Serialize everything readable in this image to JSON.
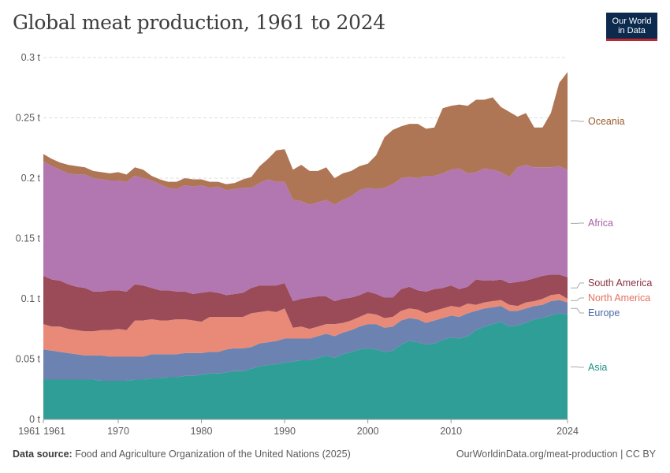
{
  "header": {
    "title": "Global meat production, 1961 to 2024",
    "logo_line1": "Our World",
    "logo_line2": "in Data"
  },
  "footer": {
    "source_label": "Data source:",
    "source_text": "Food and Agriculture Organization of the United Nations (2025)",
    "url_text": "OurWorldinData.org/meat-production | CC BY"
  },
  "colors": {
    "Asia": "#2f9e96",
    "Europe": "#6c82b0",
    "North America": "#e88a77",
    "South America": "#9b4b57",
    "Africa": "#b276b1",
    "Oceania": "#ae7655",
    "Asia_label": "#1e8f87",
    "Europe_label": "#4d6aa2",
    "North America_label": "#e2725c",
    "South America_label": "#8a3140",
    "Africa_label": "#a860a8",
    "Oceania_label": "#9a5a2e"
  },
  "chart_data": {
    "type": "area",
    "stacked": true,
    "title": "Global meat production, 1961 to 2024",
    "xlabel": "",
    "ylabel": "",
    "xlim": [
      1961,
      2024
    ],
    "ylim": [
      0,
      0.3
    ],
    "y_ticks": [
      0,
      0.05,
      0.1,
      0.15,
      0.2,
      0.25,
      0.3
    ],
    "y_tick_labels": [
      "0 t",
      "0.05 t",
      "0.1 t",
      "0.15 t",
      "0.2 t",
      "0.25 t",
      "0.3 t"
    ],
    "x_ticks": [
      1961,
      1970,
      1980,
      1990,
      2000,
      2010,
      2024
    ],
    "x_tick_labels": [
      "1961",
      "1970",
      "1980",
      "1990",
      "2000",
      "2010",
      "2024"
    ],
    "x_start_label": "1961",
    "grid": true,
    "legend": "right",
    "x": [
      1961,
      1962,
      1963,
      1964,
      1965,
      1966,
      1967,
      1968,
      1969,
      1970,
      1971,
      1972,
      1973,
      1974,
      1975,
      1976,
      1977,
      1978,
      1979,
      1980,
      1981,
      1982,
      1983,
      1984,
      1985,
      1986,
      1987,
      1988,
      1989,
      1990,
      1991,
      1992,
      1993,
      1994,
      1995,
      1996,
      1997,
      1998,
      1999,
      2000,
      2001,
      2002,
      2003,
      2004,
      2005,
      2006,
      2007,
      2008,
      2009,
      2010,
      2011,
      2012,
      2013,
      2014,
      2015,
      2016,
      2017,
      2018,
      2019,
      2020,
      2021,
      2022,
      2023,
      2024
    ],
    "series": [
      {
        "name": "Asia",
        "values": [
          0.033,
          0.033,
          0.033,
          0.033,
          0.033,
          0.033,
          0.033,
          0.032,
          0.032,
          0.032,
          0.032,
          0.033,
          0.033,
          0.034,
          0.034,
          0.035,
          0.035,
          0.036,
          0.036,
          0.037,
          0.038,
          0.038,
          0.039,
          0.04,
          0.04,
          0.042,
          0.044,
          0.045,
          0.046,
          0.047,
          0.048,
          0.049,
          0.049,
          0.051,
          0.053,
          0.051,
          0.054,
          0.056,
          0.058,
          0.059,
          0.058,
          0.056,
          0.057,
          0.062,
          0.065,
          0.064,
          0.062,
          0.063,
          0.066,
          0.068,
          0.067,
          0.069,
          0.074,
          0.077,
          0.079,
          0.081,
          0.077,
          0.078,
          0.08,
          0.083,
          0.084,
          0.086,
          0.088,
          0.087
        ]
      },
      {
        "name": "Europe",
        "values": [
          0.025,
          0.024,
          0.023,
          0.022,
          0.021,
          0.02,
          0.02,
          0.021,
          0.02,
          0.02,
          0.02,
          0.019,
          0.019,
          0.02,
          0.02,
          0.019,
          0.019,
          0.019,
          0.019,
          0.018,
          0.018,
          0.018,
          0.019,
          0.019,
          0.019,
          0.018,
          0.019,
          0.019,
          0.019,
          0.02,
          0.019,
          0.018,
          0.018,
          0.018,
          0.018,
          0.018,
          0.018,
          0.018,
          0.019,
          0.02,
          0.021,
          0.02,
          0.02,
          0.02,
          0.019,
          0.019,
          0.018,
          0.019,
          0.018,
          0.018,
          0.018,
          0.019,
          0.016,
          0.015,
          0.014,
          0.013,
          0.013,
          0.012,
          0.012,
          0.011,
          0.011,
          0.012,
          0.011,
          0.01
        ]
      },
      {
        "name": "North America",
        "values": [
          0.021,
          0.02,
          0.021,
          0.02,
          0.02,
          0.02,
          0.02,
          0.021,
          0.022,
          0.023,
          0.022,
          0.03,
          0.03,
          0.029,
          0.028,
          0.028,
          0.029,
          0.028,
          0.027,
          0.026,
          0.029,
          0.029,
          0.027,
          0.026,
          0.026,
          0.028,
          0.026,
          0.026,
          0.024,
          0.025,
          0.009,
          0.01,
          0.008,
          0.008,
          0.008,
          0.01,
          0.008,
          0.008,
          0.008,
          0.009,
          0.008,
          0.008,
          0.008,
          0.008,
          0.008,
          0.008,
          0.008,
          0.008,
          0.008,
          0.008,
          0.008,
          0.008,
          0.005,
          0.005,
          0.005,
          0.005,
          0.005,
          0.004,
          0.005,
          0.004,
          0.005,
          0.005,
          0.005,
          0.003
        ]
      },
      {
        "name": "South America",
        "values": [
          0.04,
          0.039,
          0.038,
          0.037,
          0.036,
          0.036,
          0.033,
          0.032,
          0.033,
          0.032,
          0.032,
          0.03,
          0.029,
          0.026,
          0.025,
          0.025,
          0.023,
          0.023,
          0.022,
          0.024,
          0.021,
          0.02,
          0.018,
          0.019,
          0.02,
          0.021,
          0.022,
          0.021,
          0.022,
          0.021,
          0.022,
          0.023,
          0.026,
          0.025,
          0.023,
          0.019,
          0.02,
          0.019,
          0.018,
          0.018,
          0.017,
          0.017,
          0.016,
          0.018,
          0.018,
          0.016,
          0.018,
          0.018,
          0.017,
          0.017,
          0.015,
          0.014,
          0.021,
          0.018,
          0.017,
          0.017,
          0.018,
          0.02,
          0.018,
          0.019,
          0.019,
          0.017,
          0.016,
          0.018
        ]
      },
      {
        "name": "Africa",
        "values": [
          0.095,
          0.094,
          0.092,
          0.092,
          0.093,
          0.094,
          0.094,
          0.093,
          0.091,
          0.091,
          0.091,
          0.09,
          0.089,
          0.089,
          0.088,
          0.085,
          0.085,
          0.088,
          0.089,
          0.089,
          0.086,
          0.088,
          0.087,
          0.087,
          0.087,
          0.083,
          0.085,
          0.088,
          0.086,
          0.084,
          0.084,
          0.081,
          0.077,
          0.078,
          0.08,
          0.08,
          0.082,
          0.084,
          0.087,
          0.086,
          0.087,
          0.091,
          0.094,
          0.092,
          0.091,
          0.093,
          0.096,
          0.094,
          0.095,
          0.096,
          0.1,
          0.094,
          0.089,
          0.093,
          0.092,
          0.089,
          0.088,
          0.095,
          0.096,
          0.092,
          0.09,
          0.089,
          0.09,
          0.089
        ]
      },
      {
        "name": "Oceania",
        "values": [
          0.006,
          0.006,
          0.006,
          0.007,
          0.007,
          0.006,
          0.006,
          0.006,
          0.006,
          0.007,
          0.006,
          0.007,
          0.007,
          0.004,
          0.004,
          0.005,
          0.006,
          0.006,
          0.006,
          0.005,
          0.005,
          0.004,
          0.005,
          0.005,
          0.007,
          0.009,
          0.014,
          0.017,
          0.026,
          0.027,
          0.025,
          0.03,
          0.028,
          0.026,
          0.027,
          0.022,
          0.022,
          0.021,
          0.02,
          0.02,
          0.028,
          0.042,
          0.045,
          0.043,
          0.044,
          0.045,
          0.039,
          0.04,
          0.054,
          0.053,
          0.053,
          0.056,
          0.06,
          0.057,
          0.06,
          0.054,
          0.054,
          0.042,
          0.043,
          0.033,
          0.033,
          0.045,
          0.069,
          0.081
        ]
      }
    ]
  }
}
